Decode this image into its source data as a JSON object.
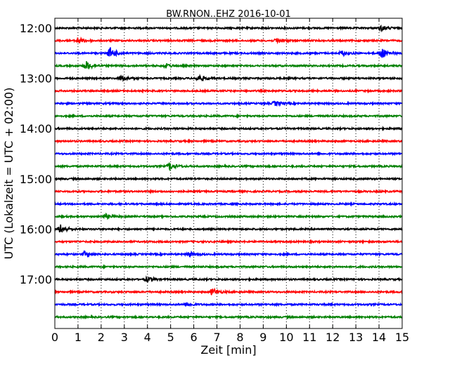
{
  "chart_data": {
    "type": "line",
    "title": "BW.RNON..EHZ 2016-10-01",
    "xlabel": "Zeit  [min]",
    "ylabel": "UTC (Lokalzeit = UTC + 02:00)",
    "xlim": [
      0,
      15
    ],
    "x_ticks": [
      0,
      1,
      2,
      3,
      4,
      5,
      6,
      7,
      8,
      9,
      10,
      11,
      12,
      13,
      14,
      15
    ],
    "x_tick_labels": [
      "0",
      "1",
      "2",
      "3",
      "4",
      "5",
      "6",
      "7",
      "8",
      "9",
      "10",
      "11",
      "12",
      "13",
      "14",
      "15"
    ],
    "y_tick_labels": [
      {
        "label": "12:00",
        "trace_index": 0
      },
      {
        "label": "13:00",
        "trace_index": 4
      },
      {
        "label": "14:00",
        "trace_index": 8
      },
      {
        "label": "15:00",
        "trace_index": 12
      },
      {
        "label": "16:00",
        "trace_index": 16
      },
      {
        "label": "17:00",
        "trace_index": 20
      }
    ],
    "grid": {
      "vertical": true,
      "style": "dotted"
    },
    "trace_colors": [
      "#000000",
      "#ff0000",
      "#0000ff",
      "#008000"
    ],
    "traces": [
      {
        "start": "12:00",
        "color": "#000000",
        "events": [
          {
            "t": 14.1,
            "amp": 1.2
          }
        ]
      },
      {
        "start": "12:15",
        "color": "#ff0000",
        "events": [
          {
            "t": 1.0,
            "amp": 1.5
          },
          {
            "t": 9.6,
            "amp": 1.2
          }
        ]
      },
      {
        "start": "12:30",
        "color": "#0000ff",
        "events": [
          {
            "t": 2.4,
            "amp": 2.6
          },
          {
            "t": 14.1,
            "amp": 2.5
          },
          {
            "t": 12.4,
            "amp": 1.2
          }
        ]
      },
      {
        "start": "12:45",
        "color": "#008000",
        "events": [
          {
            "t": 1.35,
            "amp": 2.2
          },
          {
            "t": 4.8,
            "amp": 1.0
          }
        ]
      },
      {
        "start": "13:00",
        "color": "#000000",
        "events": [
          {
            "t": 2.9,
            "amp": 1.2
          },
          {
            "t": 6.2,
            "amp": 1.5
          }
        ]
      },
      {
        "start": "13:15",
        "color": "#ff0000",
        "events": []
      },
      {
        "start": "13:30",
        "color": "#0000ff",
        "events": [
          {
            "t": 9.5,
            "amp": 1.0
          }
        ]
      },
      {
        "start": "13:45",
        "color": "#008000",
        "events": []
      },
      {
        "start": "14:00",
        "color": "#000000",
        "events": []
      },
      {
        "start": "14:15",
        "color": "#ff0000",
        "events": []
      },
      {
        "start": "14:30",
        "color": "#0000ff",
        "events": []
      },
      {
        "start": "14:45",
        "color": "#008000",
        "events": [
          {
            "t": 4.95,
            "amp": 1.8
          }
        ]
      },
      {
        "start": "15:00",
        "color": "#000000",
        "events": []
      },
      {
        "start": "15:15",
        "color": "#ff0000",
        "events": []
      },
      {
        "start": "15:30",
        "color": "#0000ff",
        "events": []
      },
      {
        "start": "15:45",
        "color": "#008000",
        "events": [
          {
            "t": 2.2,
            "amp": 1.0
          }
        ]
      },
      {
        "start": "16:00",
        "color": "#000000",
        "events": [
          {
            "t": 0.25,
            "amp": 2.0
          }
        ]
      },
      {
        "start": "16:15",
        "color": "#ff0000",
        "events": []
      },
      {
        "start": "16:30",
        "color": "#0000ff",
        "events": [
          {
            "t": 1.3,
            "amp": 1.3
          },
          {
            "t": 5.8,
            "amp": 1.1
          }
        ]
      },
      {
        "start": "16:45",
        "color": "#008000",
        "events": []
      },
      {
        "start": "17:00",
        "color": "#000000",
        "events": [
          {
            "t": 4.0,
            "amp": 1.0
          }
        ]
      },
      {
        "start": "17:15",
        "color": "#ff0000",
        "events": [
          {
            "t": 6.8,
            "amp": 1.6
          }
        ]
      },
      {
        "start": "17:30",
        "color": "#0000ff",
        "events": [
          {
            "t": 5.7,
            "amp": 1.0
          }
        ]
      },
      {
        "start": "17:45",
        "color": "#008000",
        "events": []
      }
    ]
  }
}
